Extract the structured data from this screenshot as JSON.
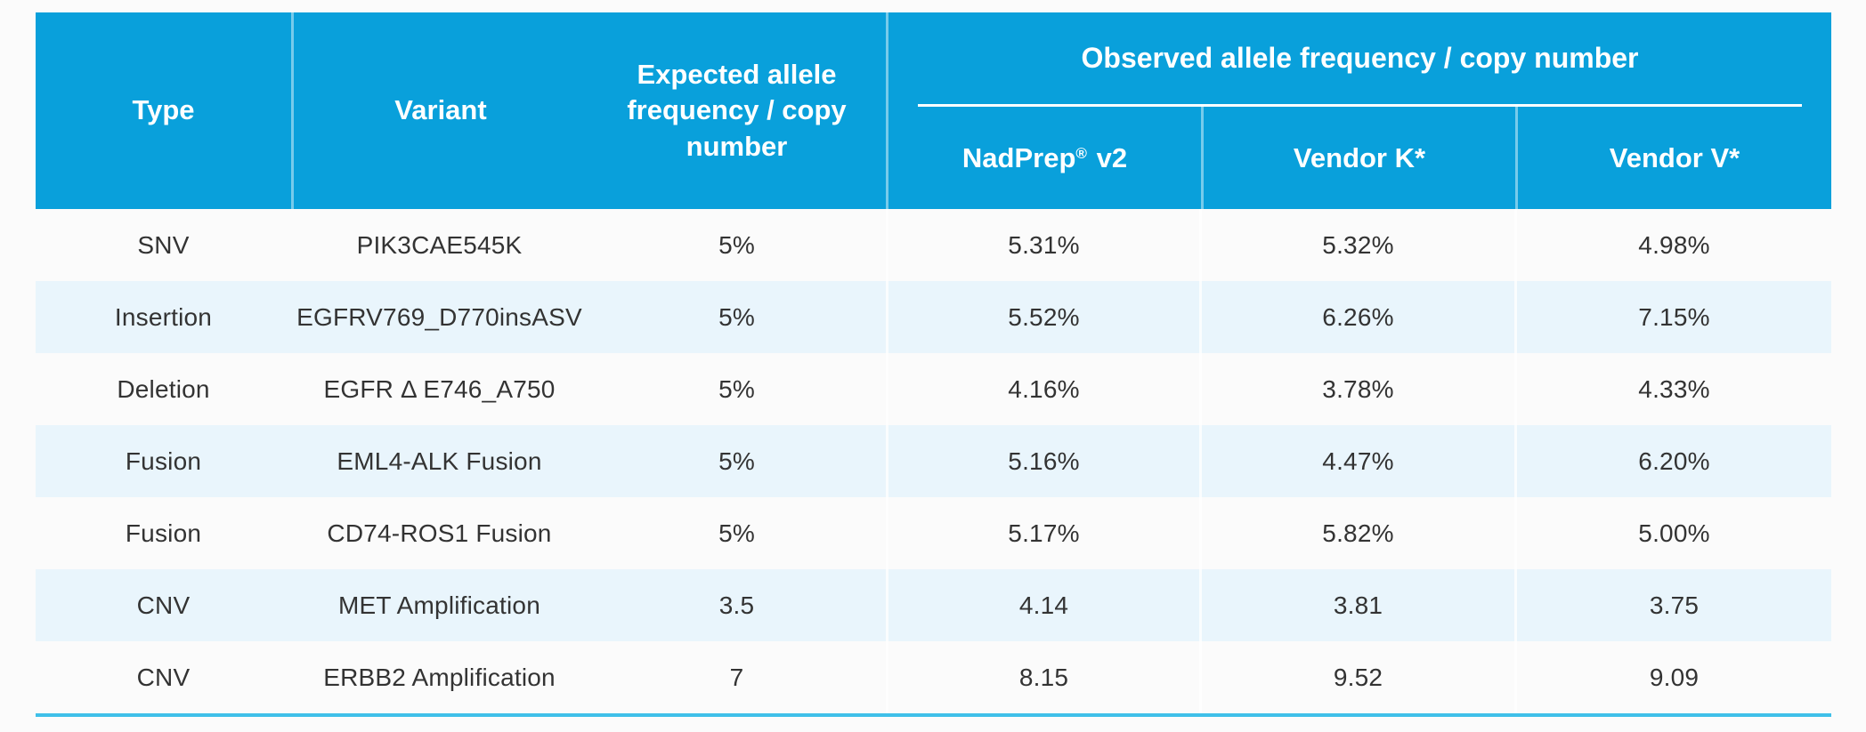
{
  "theme": {
    "header_blue": "#09a0db",
    "row_alt_blue": "#e9f5fc",
    "bottom_line_cyan": "#3fc0e9",
    "header_text": "#ffffff",
    "body_text": "#333333"
  },
  "header_parts": {
    "nadprep_brand": "NadPrep",
    "nadprep_reg": "®",
    "nadprep_suffix": "v2"
  },
  "chart_data": {
    "type": "table",
    "column_groups": {
      "observed": "Observed allele frequency / copy number"
    },
    "columns": [
      "Type",
      "Variant",
      "Expected allele frequency / copy number",
      "NadPrep® v2",
      "Vendor K*",
      "Vendor V*"
    ],
    "rows": [
      [
        "SNV",
        "PIK3CAE545K",
        "5%",
        "5.31%",
        "5.32%",
        "4.98%"
      ],
      [
        "Insertion",
        "EGFRV769_D770insASV",
        "5%",
        "5.52%",
        "6.26%",
        "7.15%"
      ],
      [
        "Deletion",
        "EGFR Δ E746_A750",
        "5%",
        "4.16%",
        "3.78%",
        "4.33%"
      ],
      [
        "Fusion",
        "EML4-ALK Fusion",
        "5%",
        "5.16%",
        "4.47%",
        "6.20%"
      ],
      [
        "Fusion",
        "CD74-ROS1 Fusion",
        "5%",
        "5.17%",
        "5.82%",
        "5.00%"
      ],
      [
        "CNV",
        "MET Amplification",
        "3.5",
        "4.14",
        "3.81",
        "3.75"
      ],
      [
        "CNV",
        "ERBB2 Amplification",
        "7",
        "8.15",
        "9.52",
        "9.09"
      ]
    ]
  }
}
